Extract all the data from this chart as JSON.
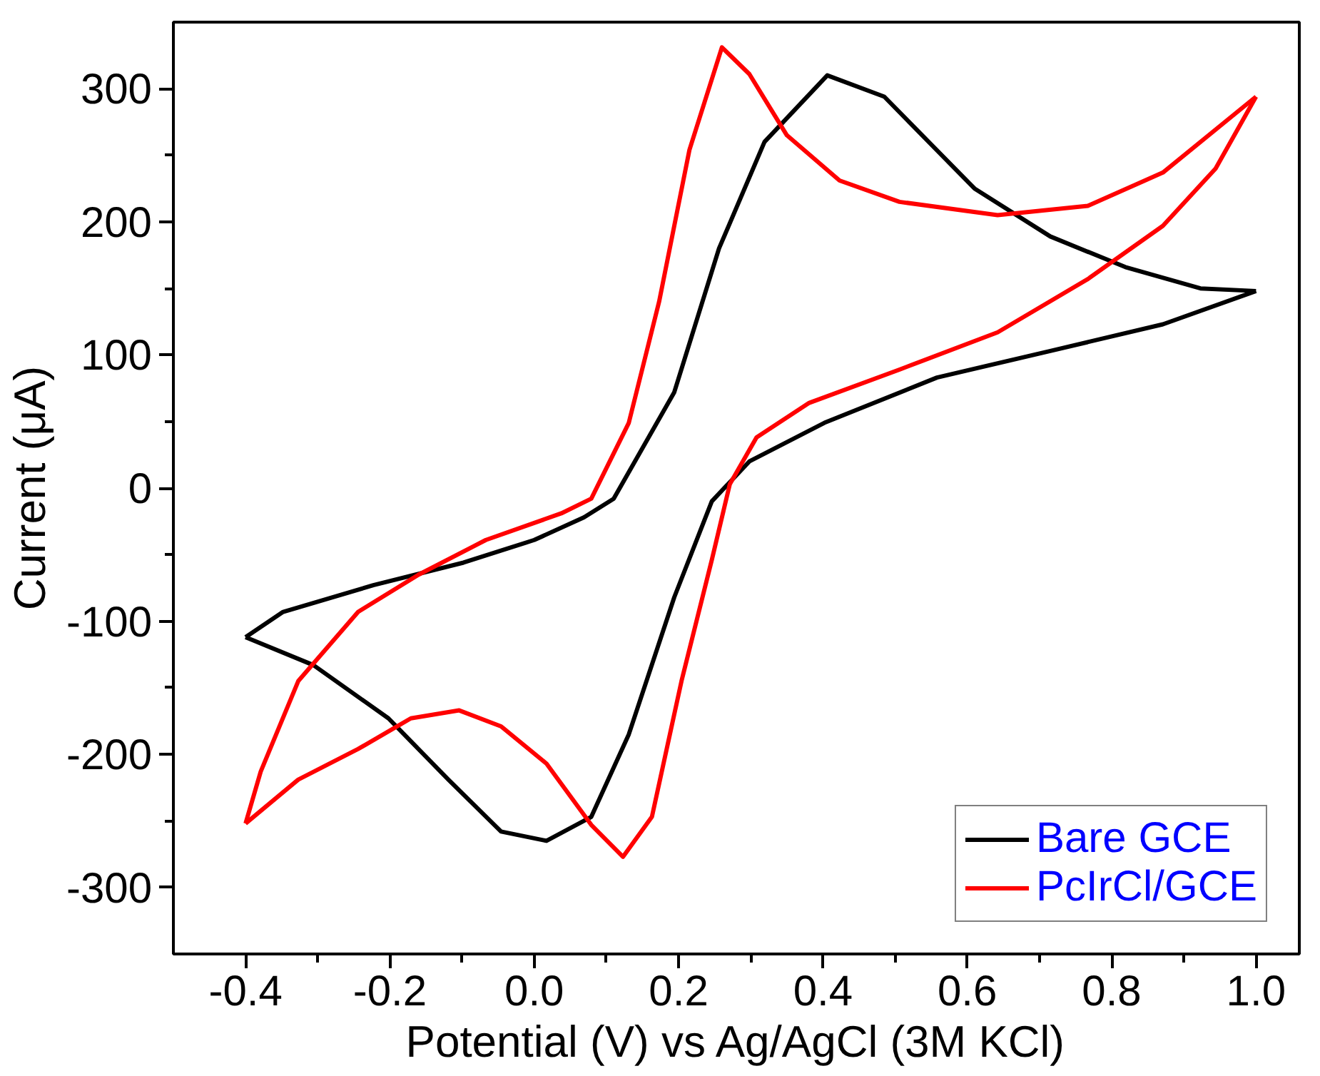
{
  "chart_data": {
    "type": "line",
    "xlabel": "Potential (V) vs Ag/AgCl (3M KCl)",
    "ylabel": "Current (μA)",
    "xlim": [
      -0.5,
      1.06
    ],
    "ylim": [
      -350,
      350
    ],
    "xticks": [
      {
        "value": -0.4,
        "label": "-0.4"
      },
      {
        "value": -0.2,
        "label": "-0.2"
      },
      {
        "value": 0,
        "label": "0.0"
      },
      {
        "value": 0.2,
        "label": "0.2"
      },
      {
        "value": 0.4,
        "label": "0.4"
      },
      {
        "value": 0.6,
        "label": "0.6"
      },
      {
        "value": 0.8,
        "label": "0.8"
      },
      {
        "value": 1.0,
        "label": "1.0"
      }
    ],
    "yticks": [
      -300,
      -200,
      -100,
      0,
      100,
      200,
      300
    ],
    "grid": false,
    "legend": "bottom right",
    "marker": "none",
    "line_style": "solid",
    "series": [
      {
        "name": "Bare GCE",
        "color": "#000000",
        "x": [
          -0.4,
          -0.348,
          -0.223,
          -0.098,
          0.0,
          0.069,
          0.11,
          0.194,
          0.256,
          0.319,
          0.406,
          0.485,
          0.61,
          0.715,
          0.819,
          0.923,
          1.0
        ],
        "values": [
          -112,
          -93,
          -73,
          -56,
          -39,
          -22,
          -8,
          72,
          180,
          260,
          310,
          294,
          225,
          189,
          166,
          150,
          148
        ]
      },
      {
        "color": "#000000",
        "x": [
          1.0,
          0.871,
          0.715,
          0.558,
          0.402,
          0.298,
          0.246,
          0.194,
          0.131,
          0.079,
          0.017,
          -0.046,
          -0.119,
          -0.202,
          -0.306,
          -0.4
        ],
        "values": [
          148,
          123,
          103,
          83,
          49,
          20,
          -10,
          -82,
          -185,
          -247,
          -265,
          -258,
          -219,
          -173,
          -133,
          -112
        ]
      },
      {
        "name": "PcIrCl/GCE",
        "color": "#ff0000",
        "x": [
          -0.4,
          -0.379,
          -0.327,
          -0.244,
          -0.16,
          -0.067,
          0.0375,
          0.079,
          0.131,
          0.173,
          0.215,
          0.26,
          0.298,
          0.35,
          0.423,
          0.506,
          0.642,
          0.767,
          0.871,
          1.0
        ],
        "values": [
          -252,
          -213,
          -145,
          -93,
          -65,
          -39,
          -19,
          -8,
          49,
          140,
          254,
          331,
          311,
          265,
          231,
          215,
          205,
          212,
          237,
          294
        ]
      },
      {
        "color": "#ff0000",
        "x": [
          1.0,
          0.944,
          0.871,
          0.767,
          0.642,
          0.506,
          0.381,
          0.308,
          0.271,
          0.246,
          0.204,
          0.163,
          0.123,
          0.079,
          0.017,
          -0.046,
          -0.104,
          -0.171,
          -0.244,
          -0.327,
          -0.4
        ],
        "values": [
          294,
          240,
          197,
          157,
          117,
          89,
          64,
          38,
          3,
          -54,
          -145,
          -247,
          -277,
          -253,
          -207,
          -179,
          -167,
          -173,
          -196,
          -219,
          -252
        ]
      }
    ]
  }
}
